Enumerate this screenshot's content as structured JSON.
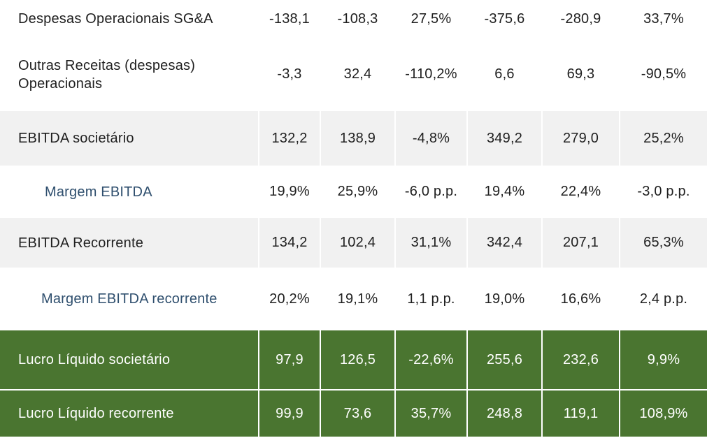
{
  "rows": [
    {
      "label": "Despesas Operacionais SG&A",
      "values": [
        "-138,1",
        "-108,3",
        "27,5%",
        "-375,6",
        "-280,9",
        "33,7%"
      ]
    },
    {
      "label": "Outras Receitas (despesas) Operacionais",
      "values": [
        "-3,3",
        "32,4",
        "-110,2%",
        "6,6",
        "69,3",
        "-90,5%"
      ]
    },
    {
      "label": "EBITDA societário",
      "values": [
        "132,2",
        "138,9",
        "-4,8%",
        "349,2",
        "279,0",
        "25,2%"
      ]
    },
    {
      "label": "Margem EBITDA",
      "values": [
        "19,9%",
        "25,9%",
        "-6,0 p.p.",
        "19,4%",
        "22,4%",
        "-3,0 p.p."
      ]
    },
    {
      "label": "EBITDA Recorrente",
      "values": [
        "134,2",
        "102,4",
        "31,1%",
        "342,4",
        "207,1",
        "65,3%"
      ]
    },
    {
      "label": "Margem EBITDA recorrente",
      "values": [
        "20,2%",
        "19,1%",
        "1,1 p.p.",
        "19,0%",
        "16,6%",
        "2,4 p.p."
      ]
    },
    {
      "label": "Lucro Líquido societário",
      "values": [
        "97,9",
        "126,5",
        "-22,6%",
        "255,6",
        "232,6",
        "9,9%"
      ]
    },
    {
      "label": "Lucro Líquido recorrente",
      "values": [
        "99,9",
        "73,6",
        "35,7%",
        "248,8",
        "119,1",
        "108,9%"
      ]
    }
  ],
  "colors": {
    "row_gray": "#f1f1f1",
    "row_green": "#4a7530",
    "margin_text": "#2f4f6e"
  }
}
